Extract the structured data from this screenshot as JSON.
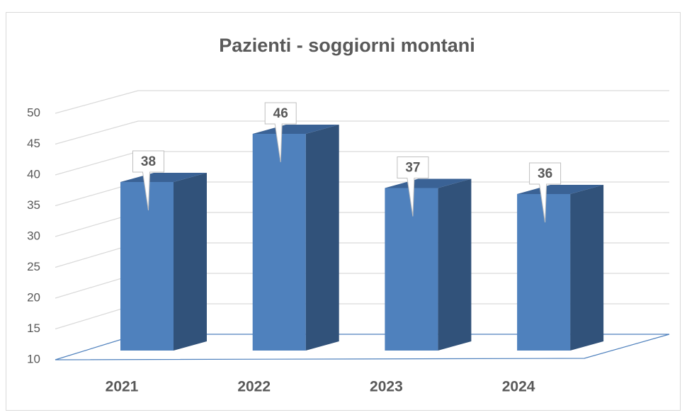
{
  "chart_data": {
    "type": "bar3d",
    "title": "Pazienti - soggiorni montani",
    "categories": [
      "2021",
      "2022",
      "2023",
      "2024"
    ],
    "values": [
      38,
      46,
      37,
      36
    ],
    "color": "#4f81bd",
    "ylim": [
      10,
      50
    ],
    "yticks": [
      10,
      15,
      20,
      25,
      30,
      35,
      40,
      45,
      50
    ],
    "grid": true
  }
}
